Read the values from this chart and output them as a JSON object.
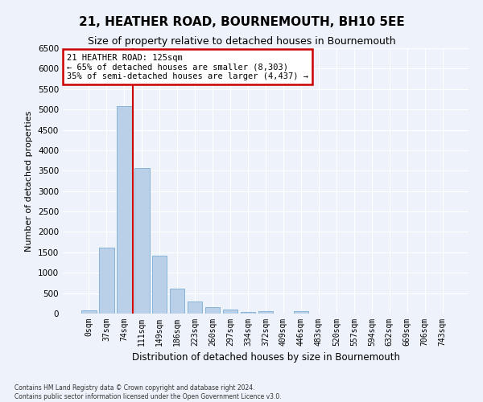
{
  "title": "21, HEATHER ROAD, BOURNEMOUTH, BH10 5EE",
  "subtitle": "Size of property relative to detached houses in Bournemouth",
  "xlabel": "Distribution of detached houses by size in Bournemouth",
  "ylabel": "Number of detached properties",
  "bar_color": "#bad0e8",
  "bar_edge_color": "#7aadd4",
  "background_color": "#eef2fa",
  "grid_color": "#ffffff",
  "categories": [
    "0sqm",
    "37sqm",
    "74sqm",
    "111sqm",
    "149sqm",
    "186sqm",
    "223sqm",
    "260sqm",
    "297sqm",
    "334sqm",
    "372sqm",
    "409sqm",
    "446sqm",
    "483sqm",
    "520sqm",
    "557sqm",
    "594sqm",
    "632sqm",
    "669sqm",
    "706sqm",
    "743sqm"
  ],
  "values": [
    75,
    1620,
    5080,
    3570,
    1410,
    620,
    305,
    155,
    90,
    45,
    60,
    0,
    55,
    0,
    0,
    0,
    0,
    0,
    0,
    0,
    0
  ],
  "ylim": [
    0,
    6500
  ],
  "yticks": [
    0,
    500,
    1000,
    1500,
    2000,
    2500,
    3000,
    3500,
    4000,
    4500,
    5000,
    5500,
    6000,
    6500
  ],
  "vline_x": 2.5,
  "vline_color": "#cc0000",
  "annotation_text": "21 HEATHER ROAD: 125sqm\n← 65% of detached houses are smaller (8,303)\n35% of semi-detached houses are larger (4,437) →",
  "annotation_box_color": "#ffffff",
  "annotation_box_edge": "#cc0000",
  "footer_line1": "Contains HM Land Registry data © Crown copyright and database right 2024.",
  "footer_line2": "Contains public sector information licensed under the Open Government Licence v3.0."
}
